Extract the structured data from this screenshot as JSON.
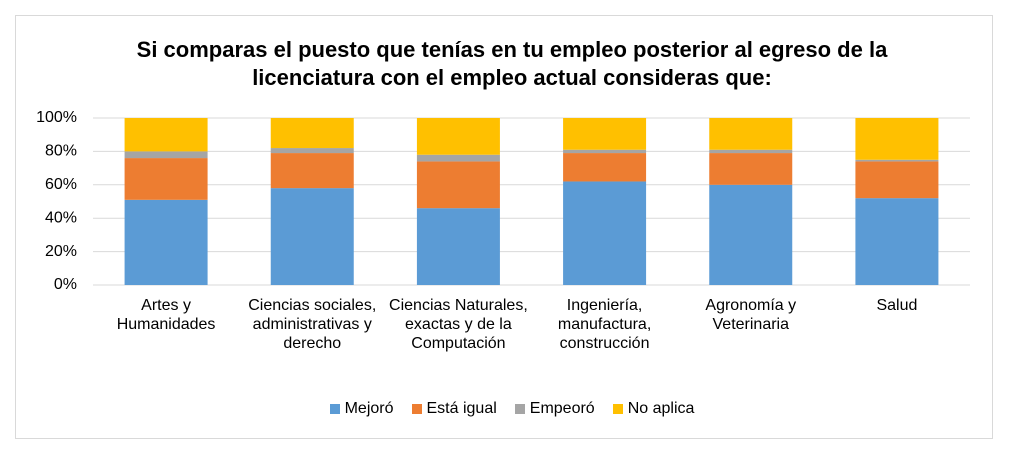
{
  "chart_data": {
    "type": "stacked_bar",
    "title": "Si comparas el puesto que tenías en tu empleo posterior al egreso de la licenciatura con el empleo actual consideras que:",
    "categories": [
      "Artes y Humanidades",
      "Ciencias sociales, administrativas y derecho",
      "Ciencias Naturales, exactas y de la Computación",
      "Ingeniería, manufactura, construcción",
      "Agronomía y Veterinaria",
      "Salud"
    ],
    "series": [
      {
        "name": "Mejoró",
        "color": "#5b9bd5",
        "values": [
          51,
          58,
          46,
          62,
          60,
          52
        ]
      },
      {
        "name": "Está igual",
        "color": "#ed7d31",
        "values": [
          25,
          21,
          28,
          17,
          19,
          22
        ]
      },
      {
        "name": "Empeoró",
        "color": "#a5a5a5",
        "values": [
          4,
          3,
          4,
          2,
          2,
          1
        ]
      },
      {
        "name": "No aplica",
        "color": "#ffc000",
        "values": [
          20,
          18,
          22,
          19,
          19,
          25
        ]
      }
    ],
    "ylim": [
      0,
      100
    ],
    "yticks": [
      {
        "value": 0,
        "label": "0%"
      },
      {
        "value": 20,
        "label": "20%"
      },
      {
        "value": 40,
        "label": "40%"
      },
      {
        "value": 60,
        "label": "60%"
      },
      {
        "value": 80,
        "label": "80%"
      },
      {
        "value": 100,
        "label": "100%"
      }
    ],
    "grid": true,
    "legend": "bottom"
  }
}
